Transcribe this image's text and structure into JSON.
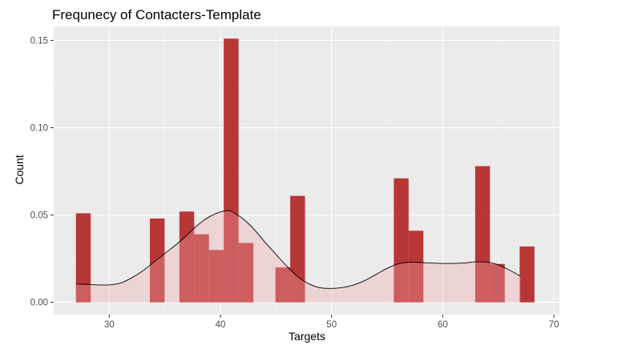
{
  "chart_data": {
    "type": "bar",
    "title": "Frequnecy of Contacters-Template",
    "xlabel": "Targets",
    "ylabel": "Count",
    "xlim": [
      25,
      70.5
    ],
    "ylim": [
      -0.007,
      0.158
    ],
    "x_ticks": [
      30,
      40,
      50,
      60,
      70
    ],
    "x_tick_labels": [
      "30",
      "40",
      "50",
      "60",
      "70"
    ],
    "y_ticks": [
      0.0,
      0.05,
      0.1,
      0.15
    ],
    "y_tick_labels": [
      "0.00",
      "0.05",
      "0.10",
      "0.15"
    ],
    "grid": true,
    "legend": "none",
    "bin_width": 1.33,
    "histogram": [
      {
        "x0": 27.0,
        "x1": 28.33,
        "value": 0.051
      },
      {
        "x0": 33.65,
        "x1": 34.98,
        "value": 0.048
      },
      {
        "x0": 36.31,
        "x1": 37.64,
        "value": 0.052
      },
      {
        "x0": 37.64,
        "x1": 38.97,
        "value": 0.039
      },
      {
        "x0": 38.97,
        "x1": 40.3,
        "value": 0.03
      },
      {
        "x0": 40.3,
        "x1": 41.63,
        "value": 0.151
      },
      {
        "x0": 41.63,
        "x1": 42.96,
        "value": 0.034
      },
      {
        "x0": 44.95,
        "x1": 46.28,
        "value": 0.02
      },
      {
        "x0": 46.28,
        "x1": 47.61,
        "value": 0.061
      },
      {
        "x0": 55.6,
        "x1": 56.93,
        "value": 0.071
      },
      {
        "x0": 56.93,
        "x1": 58.26,
        "value": 0.041
      },
      {
        "x0": 62.92,
        "x1": 64.25,
        "value": 0.078
      },
      {
        "x0": 64.25,
        "x1": 65.58,
        "value": 0.022
      },
      {
        "x0": 66.92,
        "x1": 68.25,
        "value": 0.032
      }
    ],
    "density": {
      "x": [
        27.0,
        28.0,
        29.0,
        30.0,
        31.0,
        32.0,
        33.0,
        34.0,
        35.0,
        36.0,
        37.0,
        38.0,
        39.0,
        40.0,
        40.7,
        41.0,
        42.0,
        43.0,
        44.0,
        45.0,
        46.0,
        47.0,
        48.0,
        49.0,
        50.0,
        51.0,
        52.0,
        53.0,
        54.0,
        55.0,
        56.0,
        57.0,
        58.0,
        59.0,
        60.0,
        61.0,
        62.0,
        63.0,
        64.0,
        65.0,
        66.0,
        67.0
      ],
      "y": [
        0.0105,
        0.0103,
        0.01,
        0.01,
        0.011,
        0.014,
        0.018,
        0.023,
        0.028,
        0.033,
        0.0385,
        0.0445,
        0.049,
        0.0518,
        0.0524,
        0.052,
        0.048,
        0.042,
        0.0345,
        0.0275,
        0.0205,
        0.0145,
        0.0105,
        0.0083,
        0.008,
        0.0085,
        0.01,
        0.0125,
        0.016,
        0.0195,
        0.022,
        0.023,
        0.0228,
        0.0225,
        0.0223,
        0.0223,
        0.0226,
        0.0232,
        0.023,
        0.0215,
        0.0185,
        0.015
      ]
    },
    "colors": {
      "panel_background": "#ebebeb",
      "grid_major": "#ffffff",
      "grid_minor": "#f5f5f5",
      "bar_fill": "#b22222",
      "bar_fill_opacity": 0.9,
      "density_fill": "#f4a6aa",
      "density_fill_opacity": 0.35,
      "density_line": "#000000"
    }
  }
}
